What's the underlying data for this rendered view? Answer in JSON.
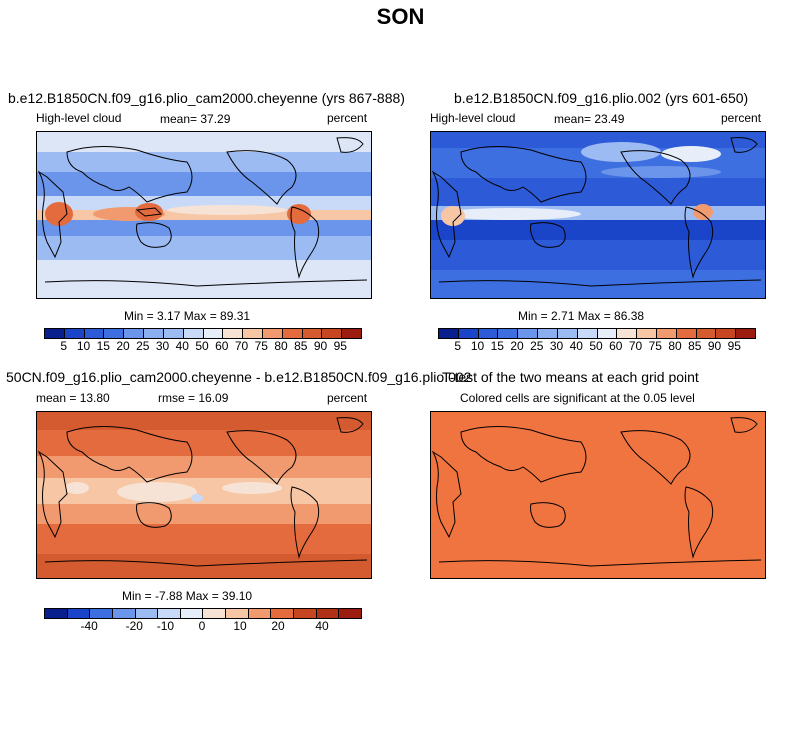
{
  "figure_title": "SON",
  "palette": {
    "cells12": [
      "#0a1f8e",
      "#1a45c8",
      "#3e6fe0",
      "#6b95eb",
      "#9dbbf3",
      "#c9daf8",
      "#e8eef9",
      "#f7e3d5",
      "#f6c6a5",
      "#f29a6f",
      "#e36b3e",
      "#c84522",
      "#9c1c10"
    ]
  },
  "panels": [
    {
      "title": "b.e12.B1850CN.f09_g16.plio_cam2000.cheyenne (yrs 867-888)",
      "left": "High-level cloud",
      "mid": "mean=  37.29",
      "right": "percent",
      "stats": "Min =   3.17 Max =  89.31",
      "ticks": [
        "5",
        "10",
        "15",
        "20",
        "25",
        "30",
        "40",
        "50",
        "60",
        "70",
        "75",
        "80",
        "85",
        "90",
        "95"
      ]
    },
    {
      "title": "b.e12.B1850CN.f09_g16.plio.002 (yrs 601-650)",
      "left": "High-level cloud",
      "mid": "mean=  23.49",
      "right": "percent",
      "stats": "Min =   2.71 Max =  86.38",
      "ticks": [
        "5",
        "10",
        "15",
        "20",
        "25",
        "30",
        "40",
        "50",
        "60",
        "70",
        "75",
        "80",
        "85",
        "90",
        "95"
      ]
    },
    {
      "title": "50CN.f09_g16.plio_cam2000.cheyenne - b.e12.B1850CN.f09_g16.plio.002",
      "left": "mean =  13.80",
      "mid": "rmse =  16.09",
      "right": "percent",
      "stats": "Min =  -7.88 Max =  39.10",
      "ticks": [
        "-40",
        "-20",
        "-10",
        "0",
        "10",
        "20",
        "40"
      ]
    },
    {
      "title": "T-test of the two means at each grid point",
      "left": "Colored cells are significant at the 0.05 level"
    }
  ]
}
